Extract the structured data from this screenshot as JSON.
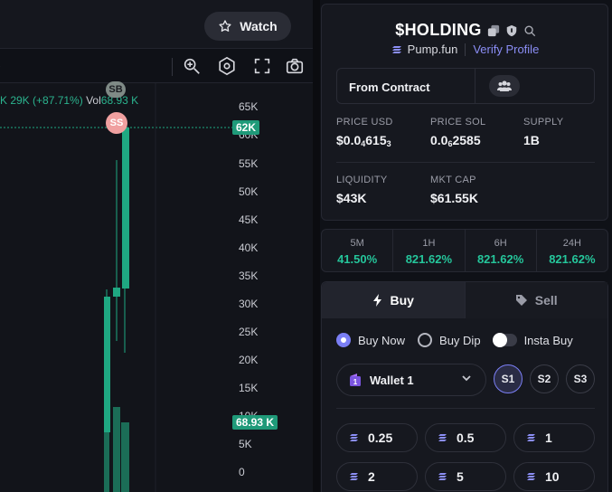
{
  "header": {
    "watch_label": "Watch"
  },
  "chart": {
    "legend": {
      "change": "K 29K (+87.71%)",
      "vol_label": "Vol",
      "vol_value": "68.93 K"
    },
    "yaxis_labels": [
      "65K",
      "60K",
      "55K",
      "50K",
      "45K",
      "40K",
      "35K",
      "30K",
      "25K",
      "20K",
      "15K",
      "10K",
      "5K",
      "0"
    ],
    "current_price_tag": "62K",
    "volume_tag": "68.93 K",
    "bubbles": [
      "SB",
      "SS"
    ],
    "colors": {
      "up": "#1fa882",
      "down": "#e05b6a",
      "bubble_sell": "#f0a0a0"
    }
  },
  "token": {
    "name": "$HOLDING",
    "source": "Pump.fun",
    "verify_label": "Verify Profile",
    "from_contract_label": "From Contract",
    "stats": {
      "price_usd_label": "PRICE USD",
      "price_usd_main": "$0.0",
      "price_usd_sub": "4",
      "price_usd_tail": "615",
      "price_usd_sub2": "3",
      "price_sol_label": "PRICE SOL",
      "price_sol_main": "0.0",
      "price_sol_sub": "6",
      "price_sol_tail": "2585",
      "supply_label": "SUPPLY",
      "supply_value": "1B",
      "liquidity_label": "LIQUIDITY",
      "liquidity_value": "$43K",
      "mktcap_label": "MKT CAP",
      "mktcap_value": "$61.55K"
    }
  },
  "changes": [
    {
      "label": "5M",
      "value": "41.50%"
    },
    {
      "label": "1H",
      "value": "821.62%"
    },
    {
      "label": "6H",
      "value": "821.62%"
    },
    {
      "label": "24H",
      "value": "821.62%"
    }
  ],
  "trade": {
    "buy_tab": "Buy",
    "sell_tab": "Sell",
    "options": {
      "buy_now": "Buy Now",
      "buy_dip": "Buy Dip",
      "insta_buy": "Insta Buy"
    },
    "wallet": "Wallet 1",
    "slots": [
      "S1",
      "S2",
      "S3"
    ],
    "amounts": [
      "0.25",
      "0.5",
      "1",
      "2",
      "5",
      "10"
    ],
    "accent": "#7b7ff5"
  }
}
